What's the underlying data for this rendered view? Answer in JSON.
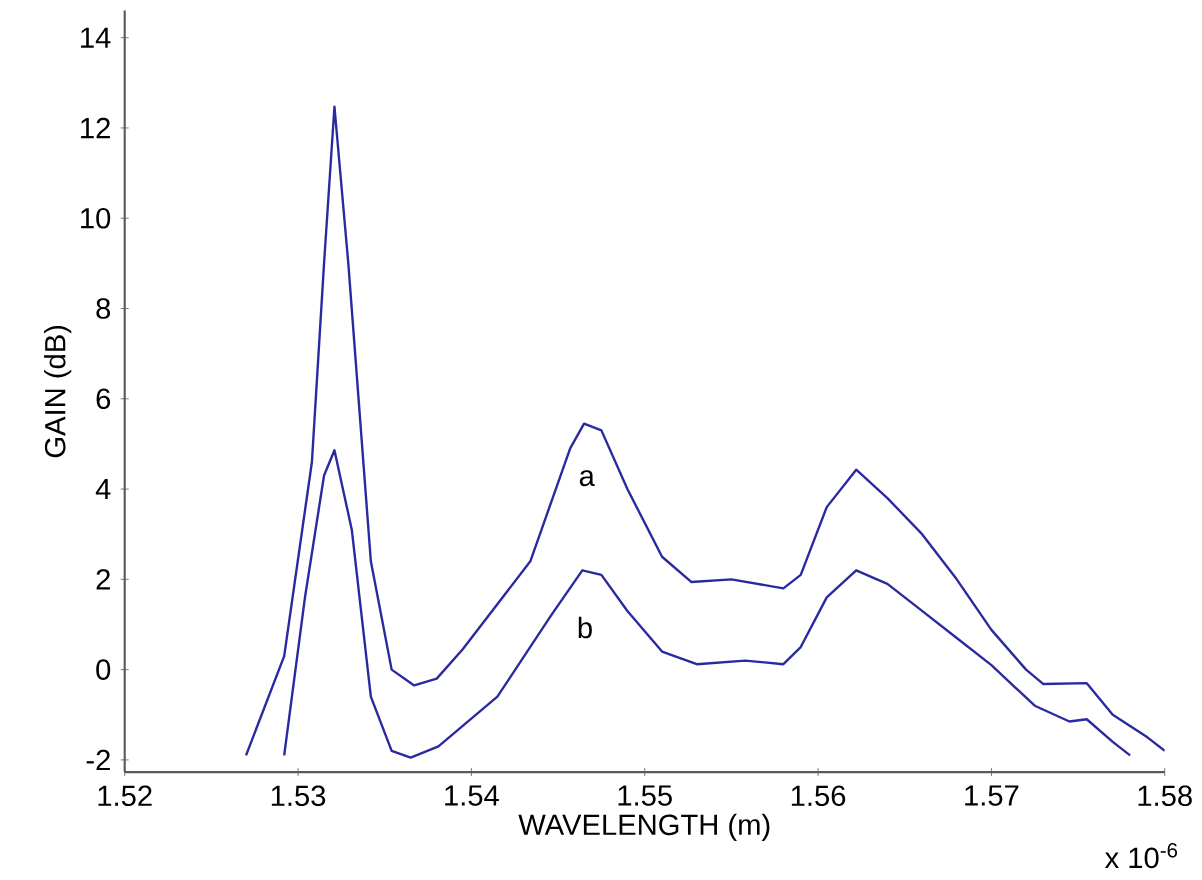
{
  "chart_data": {
    "type": "line",
    "xlabel": "WAVELENGTH (m)",
    "ylabel": "GAIN (dB)",
    "xlim": [
      1.52,
      1.58
    ],
    "ylim": [
      -2.27,
      14.6
    ],
    "xticks": [
      1.52,
      1.53,
      1.54,
      1.55,
      1.56,
      1.57,
      1.58
    ],
    "yticks": [
      -2,
      0,
      2,
      4,
      6,
      8,
      10,
      12,
      14
    ],
    "grid": false,
    "marker": "none",
    "line_style": "solid",
    "series": [
      {
        "name": "a",
        "color": "#2a2aa0",
        "x": [
          1.527,
          1.5292,
          1.5308,
          1.5315,
          1.5321,
          1.5329,
          1.5342,
          1.5354,
          1.5367,
          1.538,
          1.5395,
          1.5434,
          1.5457,
          1.5465,
          1.5475,
          1.549,
          1.551,
          1.5527,
          1.555,
          1.558,
          1.559,
          1.5605,
          1.5622,
          1.564,
          1.566,
          1.568,
          1.57,
          1.572,
          1.573,
          1.5755,
          1.577,
          1.579,
          1.58
        ],
        "values": [
          -1.9,
          0.3,
          4.6,
          9.0,
          12.47,
          9.0,
          2.4,
          0.0,
          -0.35,
          -0.2,
          0.45,
          2.4,
          4.9,
          5.45,
          5.3,
          4.0,
          2.5,
          1.94,
          2.0,
          1.8,
          2.1,
          3.6,
          4.43,
          3.8,
          3.0,
          2.0,
          0.88,
          0.0,
          -0.32,
          -0.3,
          -1.0,
          -1.5,
          -1.8
        ]
      },
      {
        "name": "b",
        "color": "#2a2aa0",
        "x": [
          1.5292,
          1.5304,
          1.5315,
          1.5321,
          1.5331,
          1.5342,
          1.5354,
          1.5365,
          1.5381,
          1.5415,
          1.5446,
          1.5464,
          1.5475,
          1.549,
          1.551,
          1.553,
          1.5558,
          1.558,
          1.559,
          1.5605,
          1.5622,
          1.564,
          1.566,
          1.568,
          1.57,
          1.5725,
          1.5745,
          1.5755,
          1.577,
          1.578
        ],
        "values": [
          -1.9,
          1.6,
          4.3,
          4.86,
          3.1,
          -0.6,
          -1.8,
          -1.95,
          -1.7,
          -0.6,
          1.2,
          2.2,
          2.1,
          1.3,
          0.4,
          0.12,
          0.2,
          0.12,
          0.5,
          1.6,
          2.2,
          1.9,
          1.3,
          0.7,
          0.1,
          -0.8,
          -1.15,
          -1.1,
          -1.6,
          -1.9
        ]
      }
    ],
    "annotations": [
      "x 10$^{-6}$"
    ]
  }
}
